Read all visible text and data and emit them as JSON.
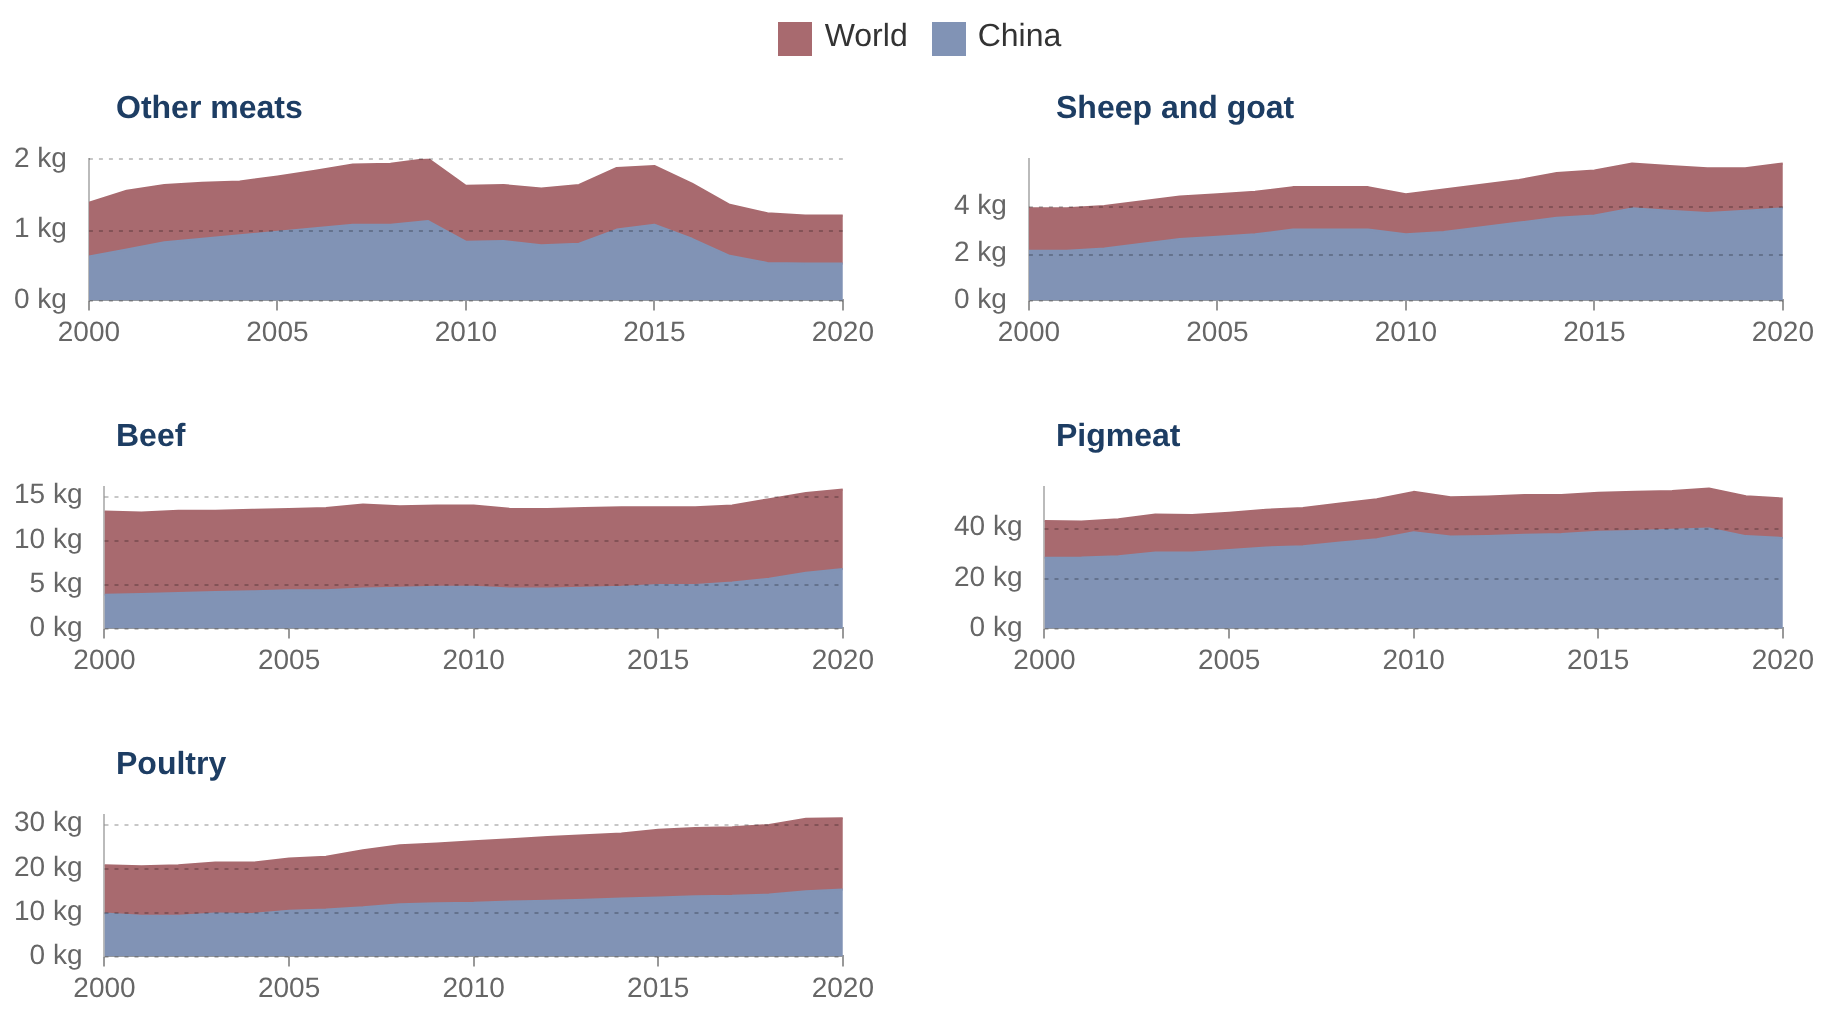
{
  "chart_data": [
    {
      "type": "area",
      "title": "Other meats",
      "stacked": true,
      "legend": "top",
      "grid": "y",
      "x": [
        2000,
        2001,
        2002,
        2003,
        2004,
        2005,
        2006,
        2007,
        2008,
        2009,
        2010,
        2011,
        2012,
        2013,
        2014,
        2015,
        2016,
        2017,
        2018,
        2019,
        2020
      ],
      "xlim": [
        2000,
        2020
      ],
      "xticks": [
        2000,
        2005,
        2010,
        2015,
        2020
      ],
      "ylim": [
        0,
        2
      ],
      "yticks": [
        {
          "value": 0,
          "label": "0 kg"
        },
        {
          "value": 1,
          "label": "1 kg"
        },
        {
          "value": 2,
          "label": "2 kg"
        }
      ],
      "series": [
        {
          "name": "China",
          "color": "#8193b5",
          "values": [
            0.62,
            0.72,
            0.82,
            0.87,
            0.92,
            0.97,
            1.02,
            1.07,
            1.07,
            1.12,
            0.83,
            0.84,
            0.78,
            0.8,
            1.0,
            1.07,
            0.87,
            0.63,
            0.53,
            0.52,
            0.52
          ]
        },
        {
          "name": "World",
          "color": "#a86a6f",
          "values": [
            0.76,
            0.83,
            0.81,
            0.79,
            0.76,
            0.78,
            0.81,
            0.85,
            0.86,
            0.88,
            0.79,
            0.79,
            0.8,
            0.83,
            0.87,
            0.83,
            0.78,
            0.72,
            0.7,
            0.68,
            0.68
          ]
        }
      ]
    },
    {
      "type": "area",
      "title": "Sheep and goat",
      "stacked": true,
      "grid": "y",
      "x": [
        2000,
        2001,
        2002,
        2003,
        2004,
        2005,
        2006,
        2007,
        2008,
        2009,
        2010,
        2011,
        2012,
        2013,
        2014,
        2015,
        2016,
        2017,
        2018,
        2019,
        2020
      ],
      "xlim": [
        2000,
        2020
      ],
      "xticks": [
        2000,
        2005,
        2010,
        2015,
        2020
      ],
      "ylim": [
        0,
        6
      ],
      "yticks": [
        {
          "value": 0,
          "label": "0 kg"
        },
        {
          "value": 2,
          "label": "2 kg"
        },
        {
          "value": 4,
          "label": "4 kg"
        }
      ],
      "series": [
        {
          "color": "#8193b5",
          "values": [
            2.1,
            2.1,
            2.2,
            2.4,
            2.6,
            2.7,
            2.8,
            3.0,
            3.0,
            3.0,
            2.8,
            2.9,
            3.1,
            3.3,
            3.5,
            3.6,
            3.9,
            3.8,
            3.7,
            3.8,
            3.9
          ]
        },
        {
          "color": "#a86a6f",
          "values": [
            1.8,
            1.8,
            1.8,
            1.8,
            1.8,
            1.8,
            1.8,
            1.8,
            1.8,
            1.8,
            1.7,
            1.8,
            1.8,
            1.8,
            1.9,
            1.9,
            1.9,
            1.9,
            1.9,
            1.8,
            1.9
          ]
        }
      ]
    },
    {
      "type": "area",
      "title": "Beef",
      "stacked": true,
      "grid": "y",
      "x": [
        2000,
        2001,
        2002,
        2003,
        2004,
        2005,
        2006,
        2007,
        2008,
        2009,
        2010,
        2011,
        2012,
        2013,
        2014,
        2015,
        2016,
        2017,
        2018,
        2019,
        2020
      ],
      "xlim": [
        2000,
        2020
      ],
      "xticks": [
        2000,
        2005,
        2010,
        2015,
        2020
      ],
      "ylim": [
        0,
        16
      ],
      "yticks": [
        {
          "value": 0,
          "label": "0 kg"
        },
        {
          "value": 5,
          "label": "5 kg"
        },
        {
          "value": 10,
          "label": "10 kg"
        },
        {
          "value": 15,
          "label": "15 kg"
        }
      ],
      "series": [
        {
          "color": "#8193b5",
          "values": [
            3.8,
            3.9,
            4.0,
            4.1,
            4.2,
            4.3,
            4.3,
            4.5,
            4.6,
            4.7,
            4.7,
            4.5,
            4.5,
            4.6,
            4.7,
            4.9,
            4.9,
            5.2,
            5.6,
            6.3,
            6.7
          ]
        },
        {
          "color": "#a86a6f",
          "values": [
            9.4,
            9.2,
            9.3,
            9.2,
            9.2,
            9.2,
            9.3,
            9.5,
            9.2,
            9.2,
            9.2,
            9.0,
            9.0,
            9.0,
            9.0,
            8.8,
            8.8,
            8.7,
            9.0,
            9.0,
            9.0
          ]
        }
      ]
    },
    {
      "type": "area",
      "title": "Pigmeat",
      "stacked": true,
      "grid": "y",
      "x": [
        2000,
        2001,
        2002,
        2003,
        2004,
        2005,
        2006,
        2007,
        2008,
        2009,
        2010,
        2011,
        2012,
        2013,
        2014,
        2015,
        2016,
        2017,
        2018,
        2019,
        2020
      ],
      "xlim": [
        2000,
        2020
      ],
      "xticks": [
        2000,
        2005,
        2010,
        2015,
        2020
      ],
      "ylim": [
        0,
        56
      ],
      "yticks": [
        {
          "value": 0,
          "label": "0 kg"
        },
        {
          "value": 20,
          "label": "20 kg"
        },
        {
          "value": 40,
          "label": "40 kg"
        }
      ],
      "series": [
        {
          "color": "#8193b5",
          "values": [
            27.9,
            28,
            28.5,
            30,
            30,
            31,
            32,
            32.5,
            34,
            35.3,
            38,
            36.3,
            36.5,
            37,
            37.3,
            38.2,
            38.5,
            39,
            39.5,
            36.5,
            35.8
          ]
        },
        {
          "color": "#a86a6f",
          "values": [
            14.6,
            14.3,
            14.7,
            15,
            14.8,
            14.7,
            14.9,
            15.1,
            15.4,
            15.8,
            16,
            15.6,
            15.7,
            15.8,
            15.5,
            15.4,
            15.5,
            15.3,
            15.8,
            15.8,
            15.6
          ]
        }
      ]
    },
    {
      "type": "area",
      "title": "Poultry",
      "stacked": true,
      "grid": "y",
      "x": [
        2000,
        2001,
        2002,
        2003,
        2004,
        2005,
        2006,
        2007,
        2008,
        2009,
        2010,
        2011,
        2012,
        2013,
        2014,
        2015,
        2016,
        2017,
        2018,
        2019,
        2020
      ],
      "xlim": [
        2000,
        2020
      ],
      "xticks": [
        2000,
        2005,
        2010,
        2015,
        2020
      ],
      "ylim": [
        0,
        32
      ],
      "yticks": [
        {
          "value": 0,
          "label": "0 kg"
        },
        {
          "value": 10,
          "label": "10 kg"
        },
        {
          "value": 20,
          "label": "20 kg"
        },
        {
          "value": 30,
          "label": "30 kg"
        }
      ],
      "series": [
        {
          "color": "#8193b5",
          "values": [
            9.7,
            9.2,
            9.2,
            9.7,
            9.6,
            10.3,
            10.6,
            11.1,
            11.8,
            12,
            12.1,
            12.4,
            12.6,
            12.8,
            13.1,
            13.3,
            13.6,
            13.7,
            14,
            14.7,
            15.1
          ]
        },
        {
          "color": "#a86a6f",
          "values": [
            10.9,
            11.2,
            11.4,
            11.5,
            11.6,
            11.8,
            11.9,
            12.9,
            13.3,
            13.5,
            13.9,
            14.1,
            14.4,
            14.6,
            14.7,
            15.3,
            15.4,
            15.5,
            15.7,
            16.4,
            16.1
          ]
        }
      ]
    }
  ]
}
